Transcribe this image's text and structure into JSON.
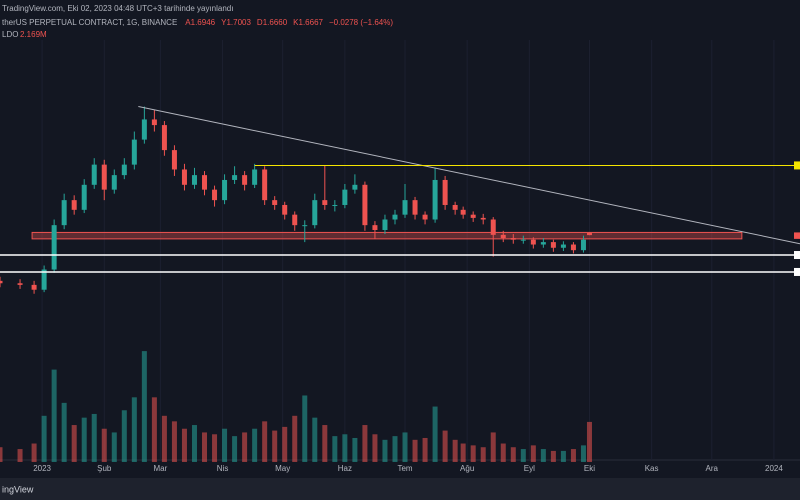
{
  "chart_data": {
    "type": "candlestick",
    "header": "TradingView.com, Eki 02, 2023 04:48 UTC+3 tarihinde yayınlandı",
    "symbol": "therUS PERPETUAL CONTRACT, 1G, BINANCE",
    "legend_values": [
      "A1.6946",
      "Y1.7003",
      "D1.6660",
      "K1.6667",
      "−0.0278 (−1.64%)"
    ],
    "volume_legend": [
      "LDO",
      "2.169M"
    ],
    "logo": "ingView",
    "up_color": "#26a69a",
    "down_color": "#ef5350",
    "xlim": [
      -21,
      378
    ],
    "ylim": [
      -1.12,
      4.58
    ],
    "y2lim": [
      0,
      25
    ],
    "xticks": [
      {
        "value": 0,
        "label": "2023"
      },
      {
        "value": 31,
        "label": "Şub"
      },
      {
        "value": 59,
        "label": "Mar"
      },
      {
        "value": 90,
        "label": "Nis"
      },
      {
        "value": 120,
        "label": "May"
      },
      {
        "value": 151,
        "label": "Haz"
      },
      {
        "value": 181,
        "label": "Tem"
      },
      {
        "value": 212,
        "label": "Ağu"
      },
      {
        "value": 243,
        "label": "Eyl"
      },
      {
        "value": 273,
        "label": "Eki"
      },
      {
        "value": 304,
        "label": "Kas"
      },
      {
        "value": 334,
        "label": "Ara"
      },
      {
        "value": 365,
        "label": "2024"
      }
    ],
    "x": [
      -21,
      -11,
      -4,
      1,
      6,
      11,
      16,
      21,
      26,
      31,
      36,
      41,
      46,
      51,
      56,
      61,
      66,
      71,
      76,
      81,
      86,
      91,
      96,
      101,
      106,
      111,
      116,
      121,
      126,
      131,
      136,
      141,
      146,
      151,
      156,
      161,
      166,
      171,
      176,
      181,
      186,
      191,
      196,
      201,
      206,
      210,
      215,
      220,
      225,
      230,
      235,
      240,
      245,
      250,
      255,
      260,
      265,
      270,
      273
    ],
    "open": [
      1.1,
      1.07,
      1.05,
      0.99,
      1.24,
      1.79,
      2.1,
      1.98,
      2.29,
      2.54,
      2.23,
      2.41,
      2.54,
      2.85,
      3.1,
      3.03,
      2.72,
      2.48,
      2.29,
      2.41,
      2.23,
      2.1,
      2.35,
      2.41,
      2.29,
      2.48,
      2.1,
      2.04,
      1.92,
      1.79,
      1.79,
      2.1,
      2.04,
      2.04,
      2.23,
      2.29,
      1.79,
      1.73,
      1.86,
      1.92,
      2.1,
      1.92,
      1.86,
      2.35,
      2.04,
      1.98,
      1.92,
      1.88,
      1.86,
      1.67,
      1.63,
      1.61,
      1.61,
      1.55,
      1.58,
      1.51,
      1.55,
      1.48,
      1.6946
    ],
    "high": [
      1.15,
      1.12,
      1.1,
      1.29,
      1.86,
      2.18,
      2.16,
      2.36,
      2.62,
      2.6,
      2.48,
      2.62,
      2.95,
      3.26,
      3.22,
      3.08,
      2.78,
      2.55,
      2.5,
      2.46,
      2.28,
      2.42,
      2.52,
      2.46,
      2.55,
      2.52,
      2.15,
      2.08,
      1.96,
      1.85,
      2.18,
      2.53,
      2.1,
      2.3,
      2.42,
      2.33,
      1.84,
      1.92,
      1.98,
      2.3,
      2.14,
      1.96,
      2.5,
      2.4,
      2.08,
      2.02,
      1.96,
      1.93,
      1.89,
      1.72,
      1.68,
      1.66,
      1.64,
      1.63,
      1.61,
      1.59,
      1.58,
      1.66,
      1.7003
    ],
    "low": [
      1.02,
      1.0,
      0.94,
      0.96,
      1.2,
      1.74,
      1.92,
      1.94,
      2.24,
      2.1,
      2.18,
      2.36,
      2.48,
      2.8,
      2.95,
      2.65,
      2.4,
      2.22,
      2.24,
      2.16,
      2.02,
      2.05,
      2.3,
      2.22,
      2.25,
      2.04,
      1.98,
      1.86,
      1.72,
      1.58,
      1.75,
      1.98,
      1.96,
      2.0,
      2.18,
      1.72,
      1.62,
      1.68,
      1.8,
      1.88,
      1.86,
      1.8,
      1.82,
      1.98,
      1.92,
      1.87,
      1.83,
      1.8,
      1.4,
      1.58,
      1.56,
      1.56,
      1.5,
      1.51,
      1.46,
      1.47,
      1.44,
      1.45,
      1.666
    ],
    "close": [
      1.07,
      1.05,
      0.99,
      1.24,
      1.79,
      2.1,
      1.98,
      2.29,
      2.54,
      2.23,
      2.41,
      2.54,
      2.85,
      3.1,
      3.03,
      2.72,
      2.48,
      2.29,
      2.41,
      2.23,
      2.1,
      2.35,
      2.41,
      2.29,
      2.48,
      2.1,
      2.04,
      1.92,
      1.79,
      1.79,
      2.1,
      2.04,
      2.04,
      2.23,
      2.29,
      1.79,
      1.73,
      1.86,
      1.92,
      2.1,
      1.92,
      1.86,
      2.35,
      2.04,
      1.98,
      1.92,
      1.88,
      1.86,
      1.67,
      1.63,
      1.61,
      1.61,
      1.55,
      1.58,
      1.51,
      1.55,
      1.48,
      1.61,
      1.6667
    ],
    "volume": [
      0.8,
      0.7,
      1.0,
      2.5,
      5.0,
      3.2,
      2.0,
      2.4,
      2.6,
      1.8,
      1.6,
      2.8,
      3.5,
      6.0,
      3.5,
      2.5,
      2.2,
      1.8,
      2.0,
      1.6,
      1.5,
      1.8,
      1.4,
      1.6,
      1.8,
      2.2,
      1.7,
      1.9,
      2.5,
      3.6,
      2.4,
      2.0,
      1.4,
      1.5,
      1.3,
      2.0,
      1.5,
      1.2,
      1.4,
      1.6,
      1.2,
      1.3,
      3.0,
      1.7,
      1.2,
      1.0,
      0.9,
      0.8,
      1.6,
      1.0,
      0.8,
      0.7,
      0.9,
      0.7,
      0.6,
      0.6,
      0.7,
      0.9,
      2.169
    ],
    "trendline": {
      "color": "#b2b5be",
      "x": [
        48,
        378
      ],
      "y": [
        3.26,
        1.56
      ]
    },
    "resistance": {
      "color": "#f5e500",
      "x": 106,
      "y": 2.53
    },
    "zone": {
      "color": "#ef5350",
      "x": [
        -5,
        349
      ],
      "y": [
        1.62,
        1.7
      ]
    },
    "levels": {
      "color": "#ffffff",
      "y": [
        1.42,
        1.21
      ]
    }
  }
}
